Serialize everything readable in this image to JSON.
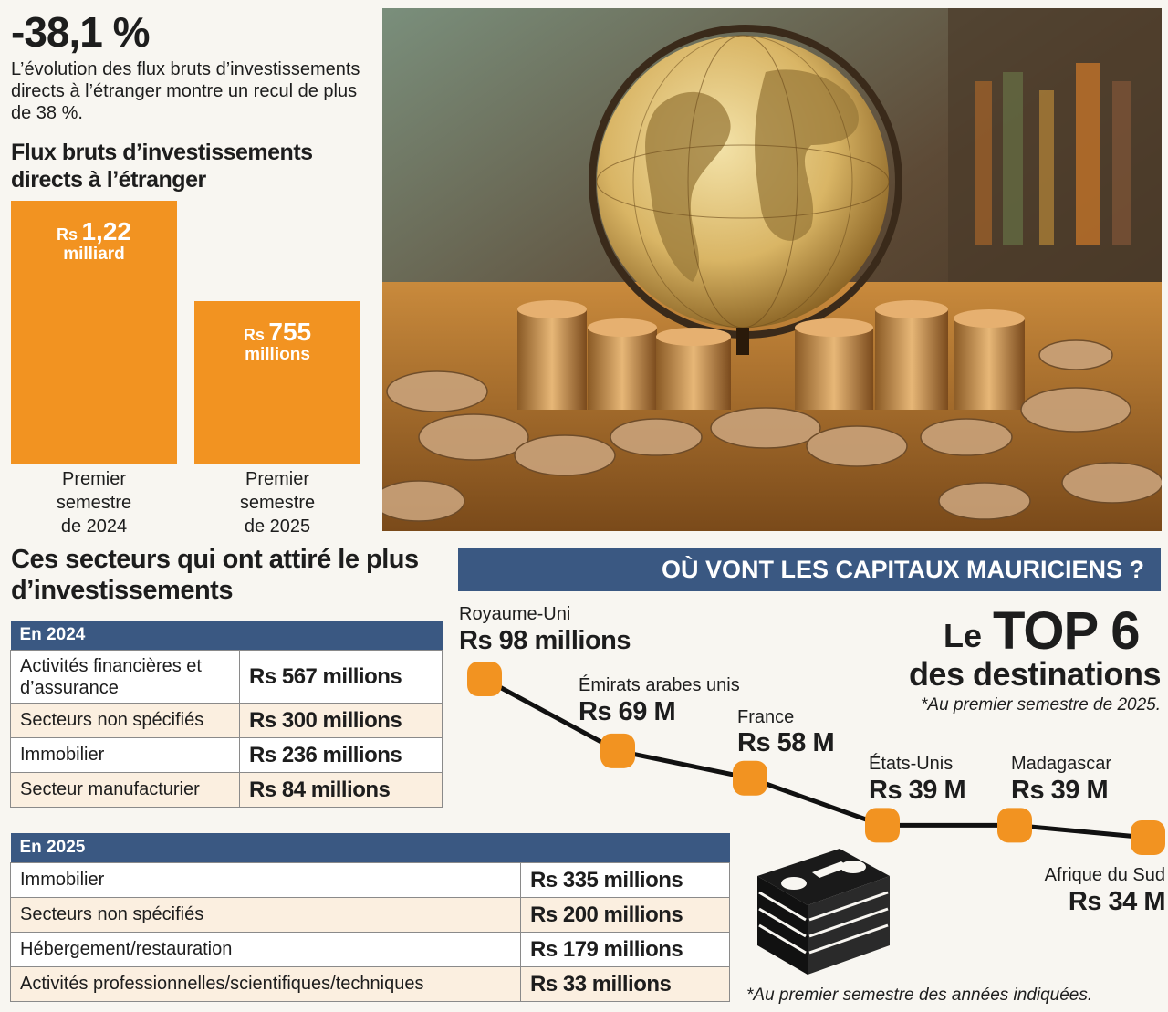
{
  "headline": "-38,1 %",
  "intro": "L’évolution des flux bruts d’investissements directs à l’étranger montre un recul de plus de 38 %.",
  "colors": {
    "orange": "#f29321",
    "navy": "#3a5882",
    "line": "#111111"
  },
  "chart_data": [
    {
      "type": "bar",
      "title": "Flux bruts d’investissements directs à l’étranger",
      "categories": [
        "Premier semestre de 2024",
        "Premier semestre de 2025"
      ],
      "values": [
        1220,
        755
      ],
      "value_unit": "millions Rs",
      "labels": [
        {
          "currency": "Rs",
          "number": "1,22",
          "unit": "milliard"
        },
        {
          "currency": "Rs",
          "number": "755",
          "unit": "millions"
        }
      ],
      "category_lines": [
        [
          "Premier",
          "semestre",
          "de 2024"
        ],
        [
          "Premier",
          "semestre",
          "de 2025"
        ]
      ],
      "ylim": [
        0,
        1220
      ]
    },
    {
      "type": "line",
      "title": "OÙ VONT LES CAPITAUX MAURICIENS ?",
      "subtitle_le": "Le",
      "subtitle_big": "TOP 6",
      "subtitle_line2": "des destinations",
      "note": "*Au premier semestre de 2025.",
      "categories": [
        "Royaume-Uni",
        "Émirats arabes unis",
        "France",
        "États-Unis",
        "Madagascar",
        "Afrique du Sud"
      ],
      "values": [
        98,
        69,
        58,
        39,
        39,
        34
      ],
      "value_labels": [
        "Rs 98 millions",
        "Rs 69 M",
        "Rs 58 M",
        "Rs 39 M",
        "Rs 39 M",
        "Rs 34 M"
      ],
      "value_unit": "millions Rs"
    }
  ],
  "sectors": {
    "title": "Ces secteurs qui ont attiré le plus d’investissements",
    "table_2024": {
      "header": "En 2024",
      "rows": [
        {
          "name": "Activités financières et d’assurance",
          "value": "Rs 567 millions"
        },
        {
          "name": "Secteurs non spécifiés",
          "value": "Rs 300 millions"
        },
        {
          "name": "Immobilier",
          "value": "Rs 236 millions"
        },
        {
          "name": "Secteur manufacturier",
          "value": "Rs 84 millions"
        }
      ]
    },
    "table_2025": {
      "header": "En 2025",
      "rows": [
        {
          "name": "Immobilier",
          "value": "Rs 335 millions"
        },
        {
          "name": "Secteurs non spécifiés",
          "value": "Rs 200 millions"
        },
        {
          "name": "Hébergement/restauration",
          "value": "Rs 179 millions"
        },
        {
          "name": "Activités professionnelles/scientifiques/techniques",
          "value": "Rs 33 millions"
        }
      ]
    }
  },
  "footnote": "*Au premier semestre des années indiquées."
}
